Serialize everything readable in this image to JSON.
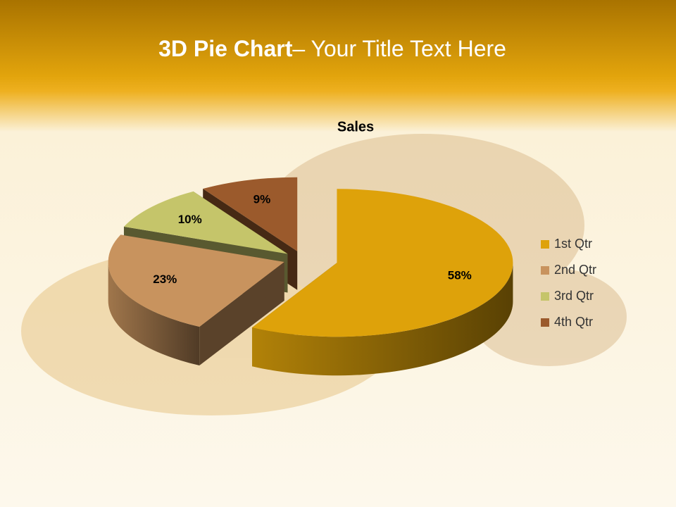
{
  "slide": {
    "title_bold": "3D Pie Chart",
    "title_rest": "– Your Title Text Here"
  },
  "chart_data": {
    "type": "pie3d",
    "title": "Sales",
    "categories": [
      "1st Qtr",
      "2nd Qtr",
      "3rd Qtr",
      "4th Qtr"
    ],
    "values": [
      58,
      23,
      10,
      9
    ],
    "value_labels": [
      "58%",
      "23%",
      "10%",
      "9%"
    ],
    "colors": [
      "#dea20a",
      "#c8935e",
      "#c5c56a",
      "#9b5a2c"
    ],
    "legend": "right"
  }
}
